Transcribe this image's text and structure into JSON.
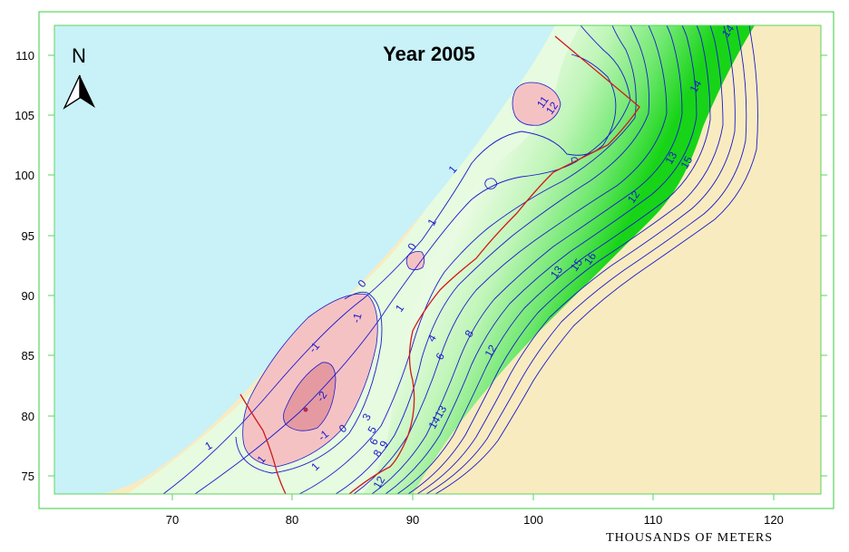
{
  "map": {
    "title": "Year 2005",
    "north_label": "N",
    "x_axis_title": "THOUSANDS OF METERS",
    "x_ticks": [
      "70",
      "80",
      "90",
      "100",
      "110",
      "120"
    ],
    "y_ticks": [
      "75",
      "80",
      "85",
      "90",
      "95",
      "100",
      "105",
      "110"
    ],
    "contour_labels": [
      "-2",
      "-1",
      "-1",
      "-1",
      "0",
      "0",
      "0",
      "1",
      "1",
      "1",
      "1",
      "1",
      "1",
      "3",
      "5",
      "6",
      "8",
      "9",
      "4",
      "6",
      "8",
      "12",
      "13",
      "14",
      "12",
      "13",
      "15",
      "16",
      "12",
      "13",
      "15",
      "14",
      "14",
      "11",
      "12"
    ],
    "colors": {
      "sea": "#c9f1f8",
      "land": "#f9ebc0",
      "low_level": "#f5c2c4",
      "lowest_level": "#e59aa2",
      "contour_line": "#1a1acc",
      "boundary_line": "#d11a1a",
      "frame": "#5ad65a"
    }
  }
}
